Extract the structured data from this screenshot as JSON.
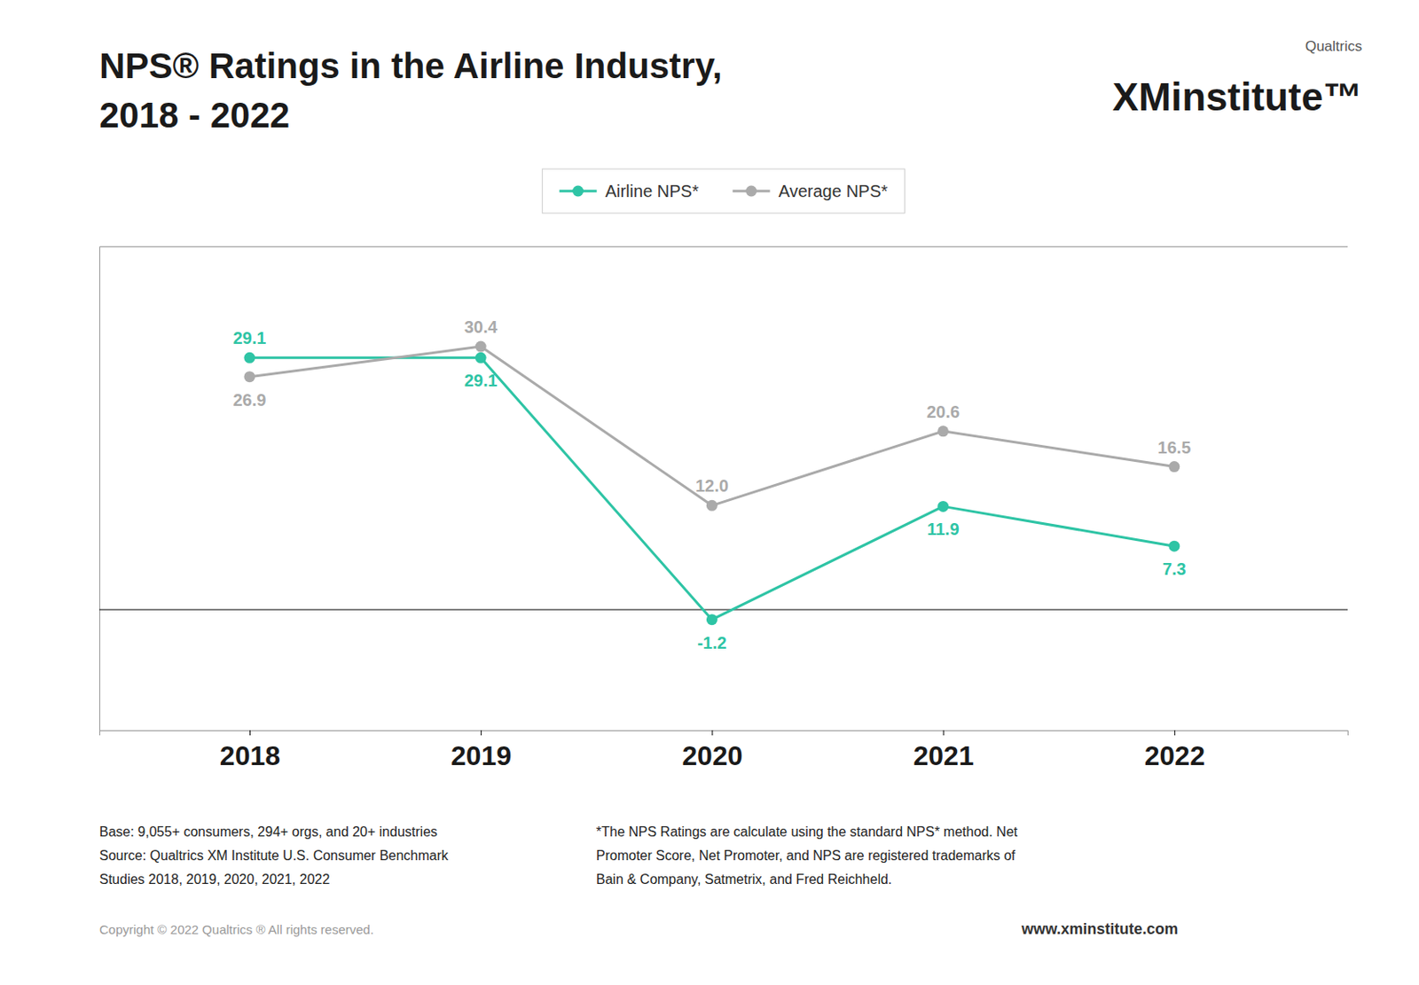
{
  "chart_data": {
    "type": "line",
    "title": "NPS® Ratings in the Airline Industry,",
    "subtitle": "2018 - 2022",
    "x": [
      2018,
      2019,
      2020,
      2021,
      2022
    ],
    "xlim": [
      2017.35,
      2022.75
    ],
    "xticks": [
      2018,
      2019,
      2020,
      2021,
      2022
    ],
    "ylim": [
      -14,
      42
    ],
    "yticks": [
      0
    ],
    "grid": true,
    "tick_labels": "x",
    "legend": "top",
    "data_labels": true,
    "series": [
      {
        "name": "Airline NPS*",
        "color": "#2ec4a5",
        "marker": "circle",
        "line_style": "solid",
        "values": [
          29.1,
          29.1,
          -1.2,
          11.9,
          7.3
        ]
      },
      {
        "name": "Average NPS*",
        "color": "#aaaaaa",
        "marker": "circle",
        "line_style": "solid",
        "values": [
          26.9,
          30.4,
          12.0,
          20.6,
          16.5
        ],
        "value_labels": [
          "26.9",
          "30.4",
          "12.0",
          "20.6",
          "16.5"
        ]
      }
    ],
    "annotations": [
      "Qualtrics",
      "XMinstitute™",
      "Base: 9,055+ consumers, 294+ orgs, and 20+ industries",
      "Source: Qualtrics XM Institute U.S. Consumer Benchmark",
      "Studies 2018, 2019, 2020, 2021, 2022",
      "*The NPS Ratings are calculate using the standard NPS* method. Net",
      "Promoter Score, Net Promoter, and NPS are registered trademarks of",
      "Bain & Company, Satmetrix, and Fred Reichheld.",
      "Copyright © 2022 Qualtrics ® All rights reserved.",
      "www.xminstitute.com"
    ]
  }
}
